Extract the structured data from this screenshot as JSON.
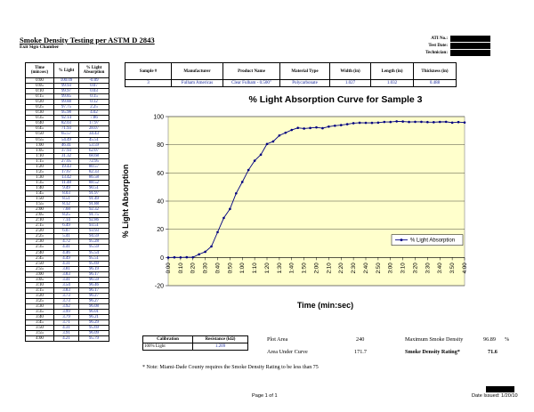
{
  "header": {
    "title": "Smoke Density Testing per ASTM D 2843",
    "subtitle": "Exit Sign Chamber",
    "id_fields": [
      {
        "label": "ATI No.:"
      },
      {
        "label": "Test Date:"
      },
      {
        "label": "Technician:"
      }
    ]
  },
  "time_table": {
    "headers": [
      "Time (min:sec)",
      "% Light",
      "% Light Absorption"
    ],
    "rows": [
      [
        "0:00",
        "100.09",
        "-0.09"
      ],
      [
        "0:05",
        "99.93",
        "0.07"
      ],
      [
        "0:10",
        "99.97",
        "0.03"
      ],
      [
        "0:15",
        "99.85",
        "0.15"
      ],
      [
        "0:20",
        "99.88",
        "0.12"
      ],
      [
        "0:25",
        "97.75",
        "2.25"
      ],
      [
        "0:30",
        "95.98",
        "4.02"
      ],
      [
        "0:35",
        "92.14",
        "7.86"
      ],
      [
        "0:40",
        "82.03",
        "17.97"
      ],
      [
        "0:45",
        "71.93",
        "28.07"
      ],
      [
        "0:50",
        "65.57",
        "34.43"
      ],
      [
        "0:55",
        "54.49",
        "45.51"
      ],
      [
        "1:00",
        "46.41",
        "53.59"
      ],
      [
        "1:05",
        "37.93",
        "62.07"
      ],
      [
        "1:10",
        "31.32",
        "68.68"
      ],
      [
        "1:15",
        "27.05",
        "72.95"
      ],
      [
        "1:20",
        "19.43",
        "80.57"
      ],
      [
        "1:25",
        "17.67",
        "82.33"
      ],
      [
        "1:30",
        "13.42",
        "86.58"
      ],
      [
        "1:35",
        "11.48",
        "88.52"
      ],
      [
        "1:40",
        "9.49",
        "90.51"
      ],
      [
        "1:45",
        "8.03",
        "91.97"
      ],
      [
        "1:50",
        "8.51",
        "91.49"
      ],
      [
        "1:55",
        "8.12",
        "91.88"
      ],
      [
        "2:00",
        "7.68",
        "92.32"
      ],
      [
        "2:05",
        "8.25",
        "91.75"
      ],
      [
        "2:10",
        "7.14",
        "92.86"
      ],
      [
        "2:15",
        "6.49",
        "93.51"
      ],
      [
        "2:20",
        "6.07",
        "93.93"
      ],
      [
        "2:25",
        "5.41",
        "94.59"
      ],
      [
        "2:30",
        "4.72",
        "95.28"
      ],
      [
        "2:35",
        "4.41",
        "95.59"
      ],
      [
        "2:40",
        "4.46",
        "95.54"
      ],
      [
        "2:45",
        "4.49",
        "95.51"
      ],
      [
        "2:50",
        "4.31",
        "95.69"
      ],
      [
        "2:55",
        "3.81",
        "96.19"
      ],
      [
        "3:00",
        "3.83",
        "96.17"
      ],
      [
        "3:05",
        "3.41",
        "96.59"
      ],
      [
        "3:10",
        "3.54",
        "96.46"
      ],
      [
        "3:15",
        "3.83",
        "96.17"
      ],
      [
        "3:20",
        "3.73",
        "96.27"
      ],
      [
        "3:25",
        "3.73",
        "96.27"
      ],
      [
        "3:30",
        "3.92",
        "96.08"
      ],
      [
        "3:35",
        "3.99",
        "96.01"
      ],
      [
        "3:40",
        "3.79",
        "96.21"
      ],
      [
        "3:45",
        "3.71",
        "96.29"
      ],
      [
        "3:50",
        "4.31",
        "95.69"
      ],
      [
        "3:55",
        "3.91",
        "96.09"
      ],
      [
        "4:00",
        "4.21",
        "95.79"
      ]
    ]
  },
  "sample_table": {
    "headers": [
      "Sample #",
      "Manufacturer",
      "Product Name",
      "Material Type",
      "Width (in)",
      "Length (in)",
      "Thickness (in)"
    ],
    "row": [
      "3",
      "Fulham Americas",
      "Clear Fulham - 0.500\"",
      "Polycarbonate",
      "1.027",
      "1.032",
      "0.488"
    ]
  },
  "chart_data": {
    "type": "line",
    "title": "% Light Absorption Curve for Sample 3",
    "xlabel": "Time (min:sec)",
    "ylabel": "% Light Absorption",
    "ylim": [
      -20,
      100
    ],
    "yticks": [
      -20,
      0,
      20,
      40,
      60,
      80,
      100
    ],
    "grid": true,
    "legend": "right",
    "x": [
      "0:00",
      "0:05",
      "0:10",
      "0:15",
      "0:20",
      "0:25",
      "0:30",
      "0:35",
      "0:40",
      "0:45",
      "0:50",
      "0:55",
      "1:00",
      "1:05",
      "1:10",
      "1:15",
      "1:20",
      "1:25",
      "1:30",
      "1:35",
      "1:40",
      "1:45",
      "1:50",
      "1:55",
      "2:00",
      "2:05",
      "2:10",
      "2:15",
      "2:20",
      "2:25",
      "2:30",
      "2:35",
      "2:40",
      "2:45",
      "2:50",
      "2:55",
      "3:00",
      "3:05",
      "3:10",
      "3:15",
      "3:20",
      "3:25",
      "3:30",
      "3:35",
      "3:40",
      "3:45",
      "3:50",
      "3:55",
      "4:00"
    ],
    "x_tick_labels": [
      "0:00",
      "0:10",
      "0:20",
      "0:30",
      "0:40",
      "0:50",
      "1:00",
      "1:10",
      "1:20",
      "1:30",
      "1:40",
      "1:50",
      "2:00",
      "2:10",
      "2:20",
      "2:30",
      "2:40",
      "2:50",
      "3:00",
      "3:10",
      "3:20",
      "3:30",
      "3:40",
      "3:50",
      "4:00"
    ],
    "series": [
      {
        "name": "% Light Absorption",
        "color": "#000080",
        "values": [
          -0.09,
          0.07,
          0.03,
          0.15,
          0.12,
          2.25,
          4.02,
          7.86,
          17.97,
          28.07,
          34.43,
          45.51,
          53.59,
          62.07,
          68.68,
          72.95,
          80.57,
          82.33,
          86.58,
          88.52,
          90.51,
          91.97,
          91.49,
          91.88,
          92.32,
          91.75,
          92.86,
          93.51,
          93.93,
          94.59,
          95.28,
          95.59,
          95.54,
          95.51,
          95.69,
          96.19,
          96.17,
          96.59,
          96.46,
          96.17,
          96.27,
          96.27,
          96.08,
          96.01,
          96.21,
          96.29,
          95.69,
          96.09,
          95.79
        ]
      }
    ],
    "plot_bg": "#ffffcc"
  },
  "calibration": {
    "headers": [
      "Calibration",
      "Resistance (kΩ)"
    ],
    "row": [
      "100% Light",
      "1.209"
    ]
  },
  "stats": {
    "plot_area_label": "Plot Area",
    "plot_area_value": "240",
    "area_under_curve_label": "Area Under Curve",
    "area_under_curve_value": "171.7",
    "max_smoke_density_label": "Maximum Smoke Density",
    "max_smoke_density_value": "96.89",
    "max_smoke_density_unit": "%",
    "smoke_density_rating_label": "Smoke Density Rating*",
    "smoke_density_rating_value": "71.6"
  },
  "note": "* Note:  Miami-Dade County requires the Smoke Density Rating to be less than 75",
  "footer": {
    "page": "Page 1 of 1",
    "date_issued": "Date Issued: 1/20/10"
  }
}
